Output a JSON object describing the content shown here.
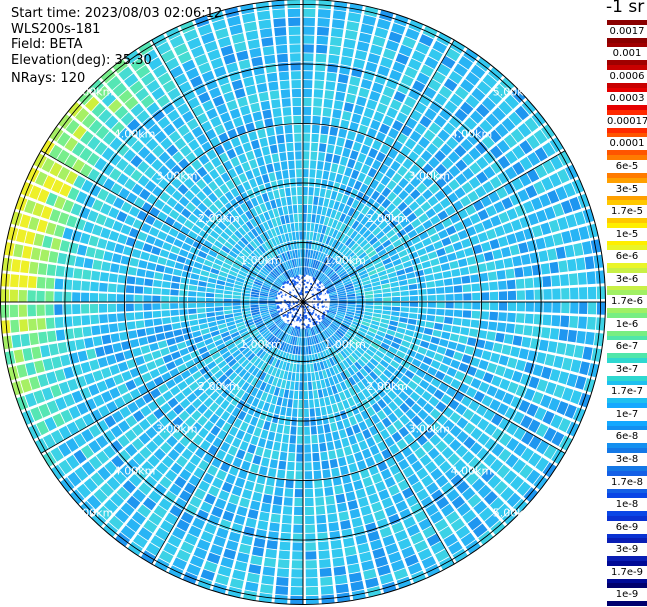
{
  "header": {
    "start_time": "Start time: 2023/08/03 02:06:12",
    "device": "WLS200s-181",
    "field": "Field: BETA",
    "elevation": "Elevation(deg): 35.30",
    "nrays": "NRays: 120"
  },
  "legend": {
    "unit": "-1 sr",
    "labels": [
      "0.0017",
      "0.001",
      "0.0006",
      "0.0003",
      "0.00017",
      "0.0001",
      "6e-5",
      "3e-5",
      "1.7e-5",
      "1e-5",
      "6e-6",
      "3e-6",
      "1.7e-6",
      "1e-6",
      "6e-7",
      "3e-7",
      "1.7e-7",
      "1e-7",
      "6e-8",
      "3e-8",
      "1.7e-8",
      "1e-8",
      "6e-9",
      "3e-9",
      "1.7e-9",
      "1e-9"
    ],
    "colors": [
      "#8b0000",
      "#a00000",
      "#c80000",
      "#e60000",
      "#ff2a00",
      "#ff5500",
      "#ff7b00",
      "#ffa000",
      "#ffc800",
      "#ffee00",
      "#eaf528",
      "#c8f046",
      "#a0f064",
      "#78ee82",
      "#50e6aa",
      "#2ed8d0",
      "#1ec0f0",
      "#14a8ff",
      "#1490f0",
      "#1478e6",
      "#1460e6",
      "#0a46e6",
      "#0a32d2",
      "#0a1eb4",
      "#000a96",
      "#00006e"
    ]
  },
  "chart_data": {
    "type": "ppi",
    "title": "",
    "field": "BETA",
    "elevation_deg": 35.3,
    "n_rays": 120,
    "range_rings_km": [
      1,
      2,
      3,
      4,
      5
    ],
    "range_labels_km": [
      "1.00km",
      "2.00km",
      "3.00km",
      "4.00km",
      "5.00km"
    ],
    "max_range_km": 5.1,
    "colorbar_ticks": [
      "0.0017",
      "0.001",
      "0.0006",
      "0.0003",
      "0.00017",
      "0.0001",
      "6e-5",
      "3e-5",
      "1.7e-5",
      "1e-5",
      "6e-6",
      "3e-6",
      "1.7e-6",
      "1e-6",
      "6e-7",
      "3e-7",
      "1.7e-7",
      "1e-7",
      "6e-8",
      "3e-8",
      "1.7e-8",
      "1e-8",
      "6e-9",
      "3e-9",
      "1.7e-9",
      "1e-9"
    ],
    "colorbar_unit": "-1 sr"
  }
}
